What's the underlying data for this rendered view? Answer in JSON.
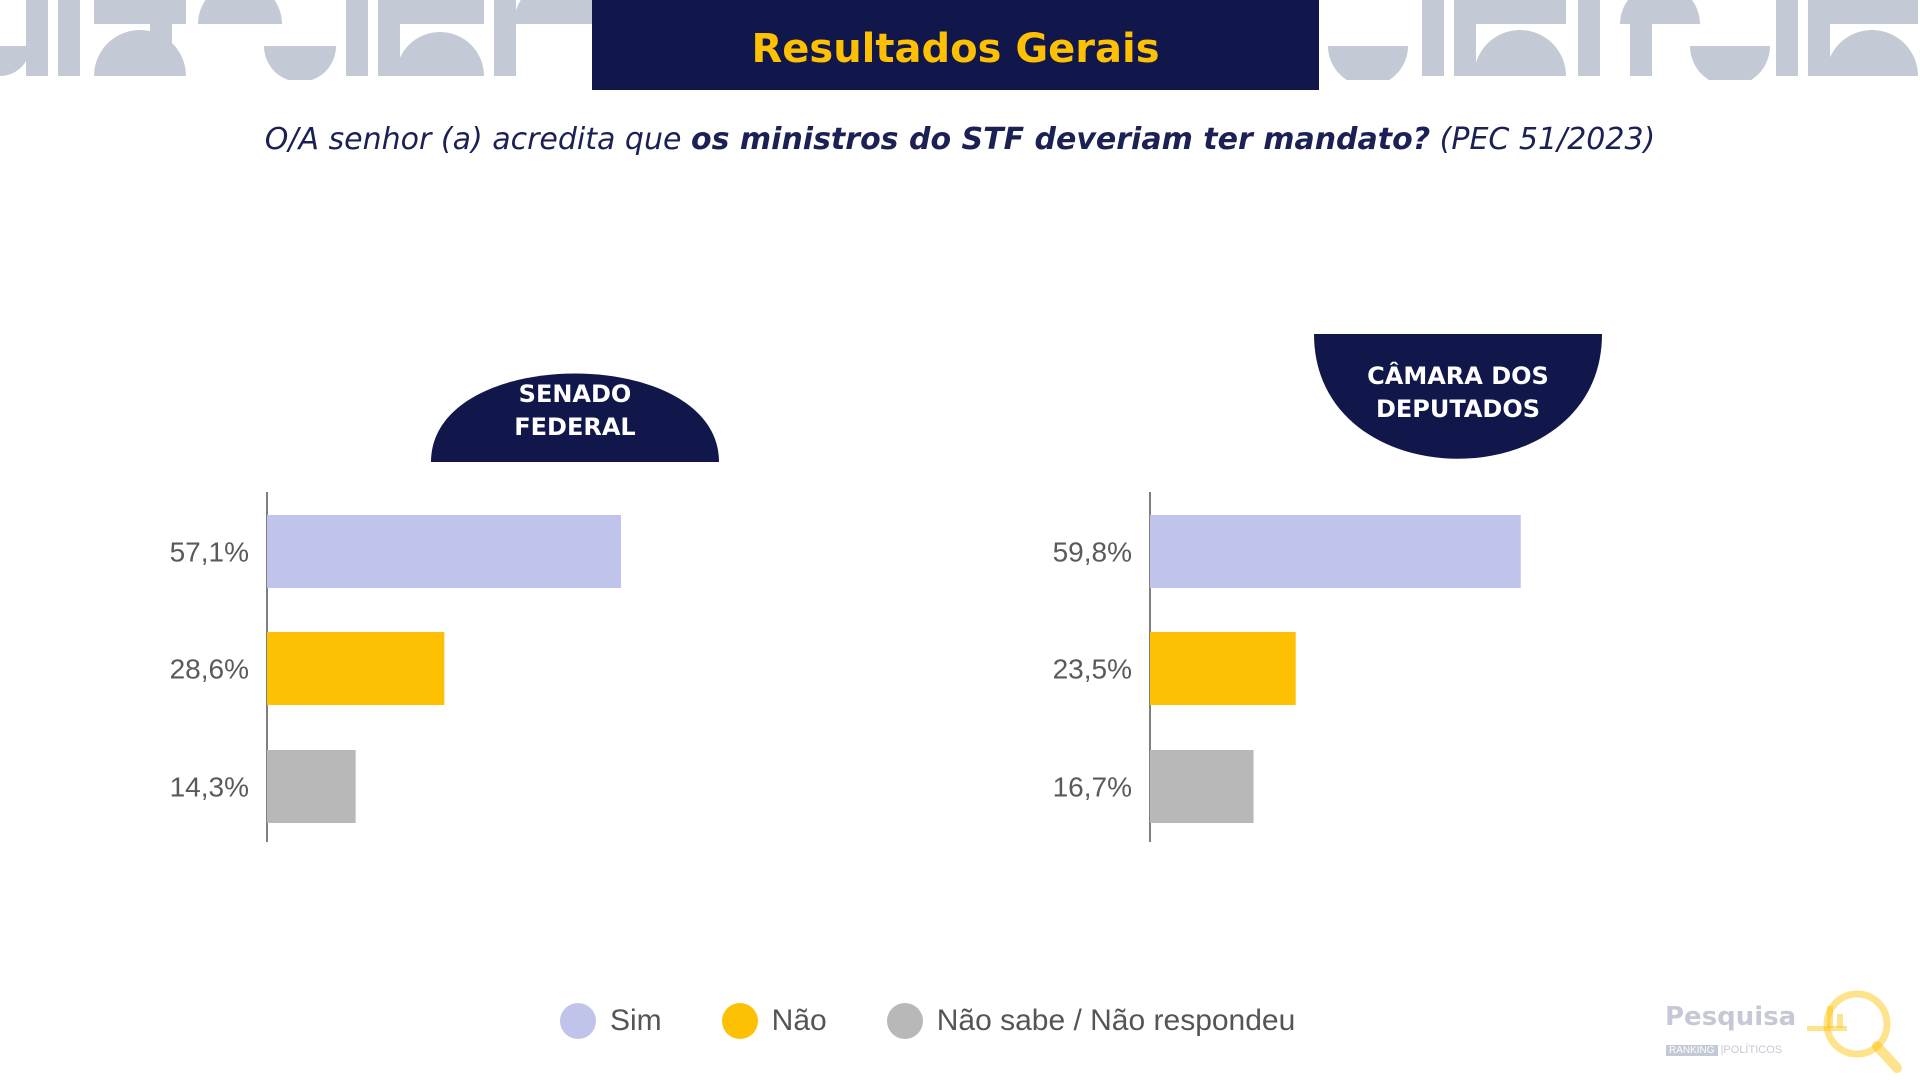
{
  "header": {
    "title": "Resultados Gerais"
  },
  "question": {
    "part1": "O/A senhor (a) acredita que ",
    "part2": "os ministros do STF deveriam ter mandato?",
    "part3": " (PEC 51/2023)"
  },
  "colors": {
    "navy": "#11174b",
    "gold": "#fdc002",
    "sim": "#c0c3ea",
    "nao": "#fdc002",
    "nao_sabe": "#b8b8b8",
    "decor": "#c4c9d6"
  },
  "chart_data": [
    {
      "type": "bar",
      "orientation": "horizontal",
      "title_lines": [
        "SENADO",
        "FEDERAL"
      ],
      "categories": [
        "Sim",
        "Não",
        "Não sabe / Não respondeu"
      ],
      "values": [
        57.1,
        28.6,
        14.3
      ],
      "labels": [
        "57,1%",
        "28,6%",
        "14,3%"
      ],
      "unit": "%",
      "xlim": [
        0,
        100
      ]
    },
    {
      "type": "bar",
      "orientation": "horizontal",
      "title_lines": [
        "CÂMARA DOS",
        "DEPUTADOS"
      ],
      "categories": [
        "Sim",
        "Não",
        "Não sabe / Não respondeu"
      ],
      "values": [
        59.8,
        23.5,
        16.7
      ],
      "labels": [
        "59,8%",
        "23,5%",
        "16,7%"
      ],
      "unit": "%",
      "xlim": [
        0,
        100
      ]
    }
  ],
  "legend": [
    {
      "label": "Sim",
      "color": "#c0c3ea"
    },
    {
      "label": "Não",
      "color": "#fdc002"
    },
    {
      "label": "Não sabe / Não respondeu",
      "color": "#b8b8b8"
    }
  ],
  "logo": {
    "name": "Pesquisa",
    "sub_box": "RANKING",
    "sub_text": "|POLÍTICOS"
  }
}
